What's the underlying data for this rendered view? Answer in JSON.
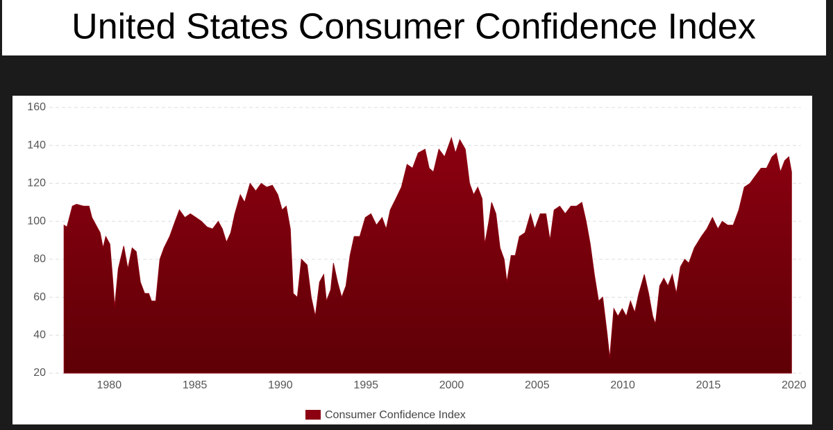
{
  "chart_data": {
    "type": "area",
    "title": "United States Consumer Confidence Index",
    "legend": "bottom",
    "grid": true,
    "xlim": [
      1976.5,
      2020.4
    ],
    "xticks": [
      1980,
      1985,
      1990,
      1995,
      2000,
      2005,
      2010,
      2015,
      2020
    ],
    "ylim": [
      20,
      160
    ],
    "yticks": [
      20,
      40,
      60,
      80,
      100,
      120,
      140,
      160
    ],
    "x": [
      1977.36,
      1977.53,
      1977.85,
      1978.09,
      1978.5,
      1978.82,
      1978.99,
      1979.23,
      1979.47,
      1979.64,
      1979.8,
      1980.04,
      1980.2,
      1980.32,
      1980.53,
      1980.85,
      1981.09,
      1981.34,
      1981.58,
      1981.82,
      1982.07,
      1982.31,
      1982.47,
      1982.72,
      1982.96,
      1983.2,
      1983.53,
      1983.85,
      1984.1,
      1984.42,
      1984.74,
      1985.07,
      1985.39,
      1985.72,
      1986.04,
      1986.37,
      1986.61,
      1986.85,
      1987.1,
      1987.34,
      1987.66,
      1987.91,
      1988.23,
      1988.56,
      1988.88,
      1989.2,
      1989.53,
      1989.85,
      1990.1,
      1990.34,
      1990.58,
      1990.75,
      1990.99,
      1991.23,
      1991.56,
      1991.8,
      1992.04,
      1992.29,
      1992.53,
      1992.69,
      1992.94,
      1993.1,
      1993.34,
      1993.58,
      1993.83,
      1994.07,
      1994.31,
      1994.64,
      1994.96,
      1995.29,
      1995.61,
      1995.94,
      1996.18,
      1996.42,
      1996.75,
      1997.07,
      1997.4,
      1997.72,
      1998.05,
      1998.45,
      1998.69,
      1998.94,
      1999.26,
      1999.59,
      1999.99,
      2000.23,
      2000.48,
      2000.8,
      2001.05,
      2001.29,
      2001.53,
      2001.78,
      2001.94,
      2002.18,
      2002.34,
      2002.59,
      2002.83,
      2003.07,
      2003.23,
      2003.48,
      2003.72,
      2003.96,
      2004.29,
      2004.61,
      2004.86,
      2005.18,
      2005.51,
      2005.75,
      2005.99,
      2006.32,
      2006.64,
      2006.97,
      2007.29,
      2007.61,
      2007.86,
      2008.1,
      2008.34,
      2008.59,
      2008.83,
      2009.07,
      2009.24,
      2009.48,
      2009.72,
      2009.97,
      2010.21,
      2010.45,
      2010.7,
      2010.94,
      2011.26,
      2011.51,
      2011.75,
      2011.91,
      2012.16,
      2012.4,
      2012.64,
      2012.89,
      2013.13,
      2013.37,
      2013.62,
      2013.86,
      2014.18,
      2014.59,
      2014.91,
      2015.24,
      2015.56,
      2015.81,
      2016.13,
      2016.45,
      2016.78,
      2017.1,
      2017.43,
      2017.75,
      2018.08,
      2018.4,
      2018.72,
      2018.97,
      2019.21,
      2019.46,
      2019.7,
      2019.86
    ],
    "series": [
      {
        "name": "Consumer Confidence Index",
        "color": "#8c0011",
        "values": [
          98,
          97,
          108,
          109,
          108,
          108,
          102,
          98,
          94,
          86,
          92,
          88,
          70,
          55,
          75,
          87,
          75,
          86,
          84,
          68,
          62,
          62,
          58,
          58,
          80,
          86,
          92,
          100,
          106,
          102,
          104,
          102,
          100,
          97,
          96,
          100,
          96,
          89,
          94,
          104,
          114,
          110,
          120,
          116,
          120,
          118,
          119,
          114,
          106,
          108,
          96,
          62,
          60,
          80,
          77,
          60,
          50,
          68,
          72,
          58,
          64,
          78,
          68,
          60,
          66,
          82,
          92,
          92,
          102,
          104,
          98,
          102,
          96,
          106,
          112,
          118,
          130,
          128,
          136,
          138,
          128,
          126,
          138,
          134,
          144,
          136,
          143,
          138,
          120,
          114,
          118,
          112,
          88,
          100,
          110,
          104,
          86,
          80,
          68,
          82,
          82,
          92,
          94,
          104,
          96,
          104,
          104,
          90,
          106,
          108,
          104,
          108,
          108,
          110,
          100,
          88,
          72,
          58,
          60,
          42,
          28,
          54,
          50,
          54,
          50,
          58,
          52,
          62,
          72,
          62,
          50,
          46,
          66,
          70,
          66,
          72,
          62,
          76,
          80,
          78,
          86,
          92,
          96,
          102,
          96,
          100,
          98,
          98,
          106,
          118,
          120,
          124,
          128,
          128,
          134,
          136,
          126,
          132,
          134,
          126
        ]
      }
    ]
  }
}
